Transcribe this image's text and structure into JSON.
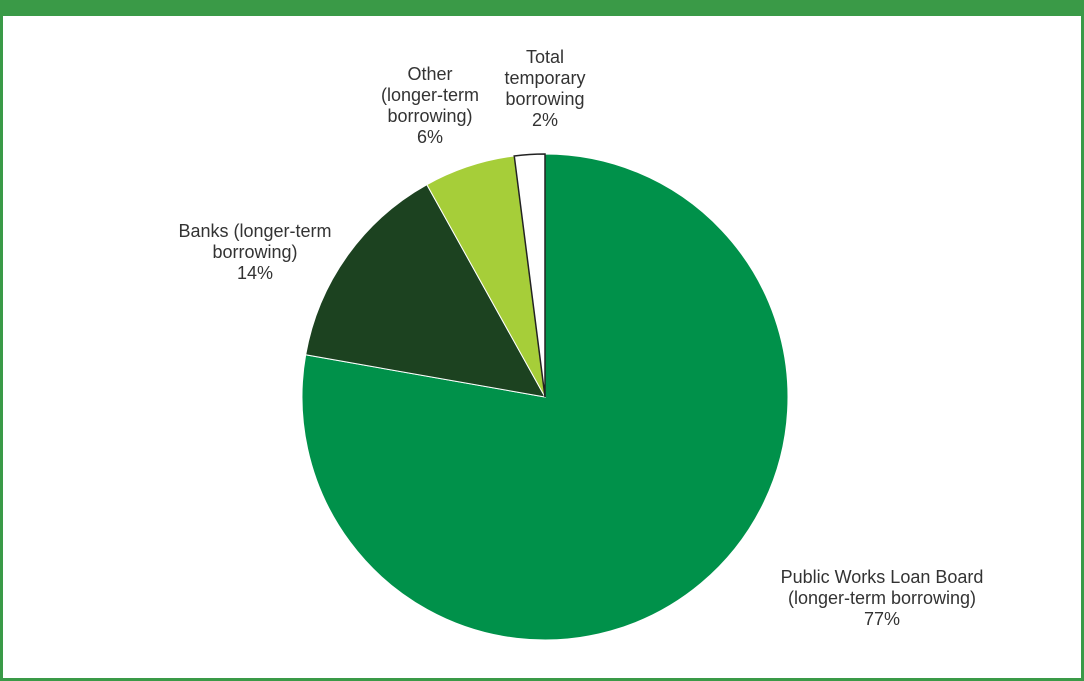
{
  "chart_data": {
    "type": "pie",
    "title": "",
    "slices": [
      {
        "label_lines": [
          "Public Works Loan Board",
          "(longer-term borrowing)"
        ],
        "pct_text": "77%",
        "value": 77,
        "color": "#00914a"
      },
      {
        "label_lines": [
          "Banks (longer-term",
          "borrowing)"
        ],
        "pct_text": "14%",
        "value": 14,
        "color": "#1c4220"
      },
      {
        "label_lines": [
          "Other",
          "(longer-term",
          "borrowing)"
        ],
        "pct_text": "6%",
        "value": 6,
        "color": "#a6ce39"
      },
      {
        "label_lines": [
          "Total",
          "temporary",
          "borrowing"
        ],
        "pct_text": "2%",
        "value": 2,
        "color": "#ffffff"
      }
    ],
    "start": "12 o'clock",
    "direction": "clockwise"
  }
}
